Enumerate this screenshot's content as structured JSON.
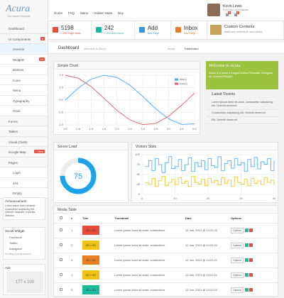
{
  "brand": {
    "logo": "Acura",
    "tagline": "Your Admin Template"
  },
  "nav": [
    "Home",
    "FAQ",
    "Menu",
    "Hidden Stats",
    "Buy"
  ],
  "user": {
    "name": "Kevin Lewis",
    "role": "Executive Administrator",
    "badges": [
      "3",
      "5"
    ]
  },
  "stats": [
    {
      "value": "5198",
      "label": "+19% Page views",
      "color": "#e74c3c"
    },
    {
      "value": "242",
      "label": "+25% New Users",
      "color": "#1abc9c"
    },
    {
      "value": "Add",
      "label": "New Page",
      "color": "#3498db"
    },
    {
      "value": "Inbox",
      "label": "New Msgs",
      "color": "#e67e22"
    },
    {
      "value": "Custom Contents",
      "label": "Make any contents for your clients"
    }
  ],
  "sidebar": [
    {
      "label": "Dashboard"
    },
    {
      "label": "UI Components",
      "badge": "6",
      "items": [
        {
          "label": "General"
        },
        {
          "label": "Widgets",
          "badge": "19"
        },
        {
          "label": "Buttons"
        },
        {
          "label": "Icons"
        },
        {
          "label": "Menu"
        },
        {
          "label": "Typography"
        },
        {
          "label": "Grids"
        }
      ]
    },
    {
      "label": "Forms"
    },
    {
      "label": "Tables"
    },
    {
      "label": "Visual Charts"
    },
    {
      "label": "Google Map",
      "badge": "+ New"
    },
    {
      "label": "Pages",
      "items": [
        {
          "label": "Login"
        },
        {
          "label": "404"
        },
        {
          "label": "Empty"
        }
      ]
    }
  ],
  "announcement": {
    "title": "Announcement",
    "text": "Lorem ipsum dolor sit amet, consectetur adipisicing elit. Deleniti, magnam, expedita, delectus."
  },
  "social": {
    "title": "Social Widget",
    "items": [
      "Facebook",
      "Twitter",
      "Instagram"
    ],
    "note": "Sending a social account"
  },
  "ads": {
    "title": "Ads",
    "size": "177 x 100"
  },
  "page": {
    "title": "Dashboard",
    "subtitle": "Welcome to Acura",
    "crumbs": [
      "Acura",
      "Dashboard"
    ]
  },
  "welcome": {
    "title": "Welcome to Acura",
    "text": "Acura is a clean & elegant Admin Template. Designed for Creative People!"
  },
  "tweets": {
    "title": "Latest Tweets",
    "items": [
      "Lorem ipsum dolor sit amet, consectetur adipisicing elit. Deleniti deserunt.",
      "Consectetur adipisicing elit. Deleniti deserunt.",
      "Elit. Deleniti deserunt."
    ]
  },
  "chart_data": [
    {
      "type": "line",
      "title": "Simple Chart",
      "x": [
        0,
        0.5,
        1,
        1.5,
        2,
        2.5,
        3,
        3.5,
        4,
        4.5,
        5
      ],
      "series": [
        {
          "name": "sin(x)",
          "color": "#3fa9f5",
          "values": [
            0,
            0.48,
            0.84,
            1.0,
            0.91,
            0.6,
            0.14,
            -0.35,
            -0.76,
            -0.98,
            -0.96
          ]
        },
        {
          "name": "cos(x)",
          "color": "#e05a6a",
          "values": [
            1,
            0.88,
            0.54,
            0.07,
            -0.42,
            -0.8,
            -0.99,
            -0.94,
            -0.65,
            -0.21,
            0.28
          ]
        }
      ],
      "xlim": [
        0,
        5
      ],
      "ylim": [
        -1,
        1
      ],
      "xticks": [
        {
          "value": 0,
          "label": "0.0"
        },
        0.5,
        {
          "value": 1,
          "label": "1.0"
        },
        1.5,
        {
          "value": 2,
          "label": "2.0"
        },
        2.5,
        {
          "value": 3,
          "label": "3.0"
        },
        3.5,
        {
          "value": 4,
          "label": "4.0"
        },
        4.5,
        {
          "value": 5,
          "label": "5.0"
        }
      ],
      "yticks": [
        {
          "value": -1,
          "label": "-1.0"
        },
        -0.5,
        {
          "value": 0,
          "label": "0.0"
        },
        0.5,
        {
          "value": 1,
          "label": "1.0"
        }
      ],
      "grid": true,
      "legend": "upper right"
    },
    {
      "type": "step",
      "title": "Visitors Stats",
      "x": [
        1,
        2,
        3,
        4,
        5,
        6,
        7,
        8,
        9,
        10,
        11,
        12,
        13,
        14,
        15,
        16,
        17,
        18,
        19,
        20,
        21,
        22,
        23,
        24,
        25,
        26,
        27,
        28,
        29,
        30,
        31,
        32,
        33,
        34,
        35,
        36,
        37,
        38,
        39,
        40
      ],
      "series": [
        {
          "color": "#3fa9f5",
          "values": [
            70,
            85,
            60,
            90,
            75,
            55,
            80,
            95,
            65,
            70,
            88,
            60,
            75,
            92,
            58,
            80,
            70,
            85,
            62,
            90,
            72,
            68,
            95,
            60,
            78,
            85,
            66,
            90,
            74,
            80,
            58,
            88,
            70,
            93,
            64,
            82,
            76,
            90,
            60,
            85
          ]
        },
        {
          "color": "#f1c40f",
          "values": [
            30,
            25,
            40,
            20,
            35,
            45,
            22,
            30,
            38,
            25,
            42,
            28,
            33,
            20,
            45,
            30,
            26,
            38,
            22,
            40,
            30,
            35,
            24,
            42,
            28,
            36,
            20,
            44,
            30,
            26,
            38,
            22,
            40,
            28,
            34,
            25,
            42,
            30,
            36,
            24
          ]
        }
      ],
      "xlim": [
        0,
        40
      ],
      "ylim": [
        0,
        100
      ],
      "xticks": [
        0,
        10,
        20,
        30,
        40
      ],
      "yticks": [
        0,
        25,
        50,
        75,
        100
      ],
      "grid": true
    },
    {
      "type": "donut",
      "title": "Server Load",
      "value": 75,
      "color": "#1aa3e8"
    }
  ],
  "table": {
    "title": "Media Table",
    "columns": [
      "#",
      "Title",
      "Thumbnail",
      "Date",
      "Options"
    ],
    "rows": [
      {
        "n": "1",
        "title": "80 × 50",
        "color": "#e74c3c",
        "thumb": "Lorem ipsum dolor sit amet, consectetur.",
        "date": "12 Jan, 2013 @ 14:22:24",
        "option": "Options"
      },
      {
        "n": "2",
        "title": "80 × 50",
        "color": "#f1c40f",
        "thumb": "Lorem ipsum dolor sit amet, consectetur.",
        "date": "12 Jan, 2013 @ 14:22:24",
        "option": "Options"
      },
      {
        "n": "3",
        "title": "80 × 50",
        "color": "#e67e22",
        "thumb": "Lorem ipsum dolor sit amet, consectetur.",
        "date": "12 Jan, 2013 @ 14:22:24",
        "option": "Options"
      },
      {
        "n": "4",
        "title": "80 × 50",
        "color": "#f1c40f",
        "thumb": "Lorem ipsum dolor sit amet, consectetur.",
        "date": "12 Jan, 2013 @ 14:22:24",
        "option": "Options"
      },
      {
        "n": "5",
        "title": "80 × 50",
        "color": "#1abc9c",
        "thumb": "Lorem ipsum dolor sit amet, consectetur.",
        "date": "12 Jan, 2013 @ 14:22:24",
        "option": "Options"
      }
    ]
  }
}
